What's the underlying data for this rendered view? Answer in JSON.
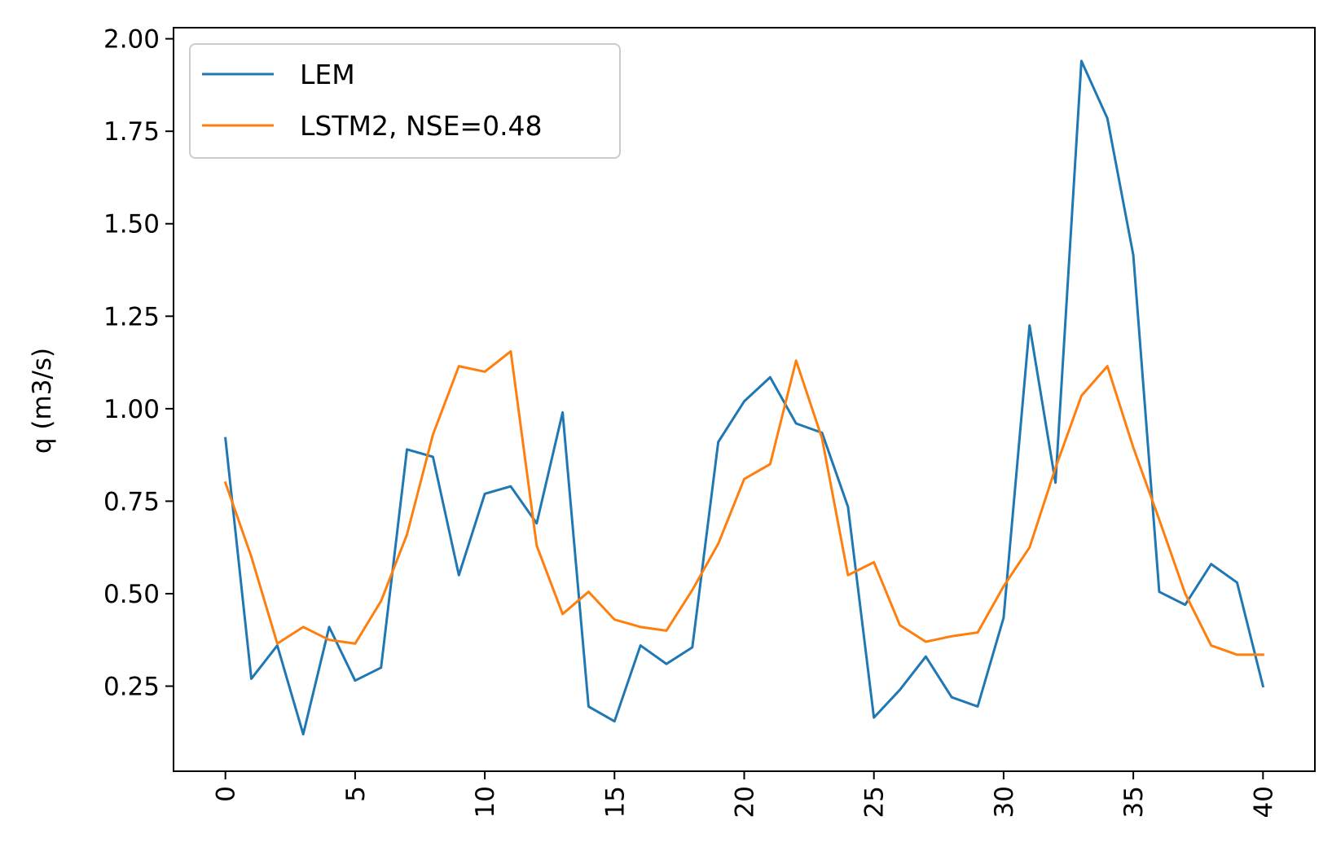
{
  "chart_data": {
    "type": "line",
    "title": "",
    "xlabel": "",
    "ylabel": "q (m3/s)",
    "xlim": [
      -2,
      42
    ],
    "ylim": [
      0.02,
      2.03
    ],
    "xticks": [
      0,
      5,
      10,
      15,
      20,
      25,
      30,
      35,
      40
    ],
    "xtick_labels": [
      "0",
      "5",
      "10",
      "15",
      "20",
      "25",
      "30",
      "35",
      "40"
    ],
    "xtick_rotation": "vertical",
    "yticks": [
      0.25,
      0.5,
      0.75,
      1.0,
      1.25,
      1.5,
      1.75,
      2.0
    ],
    "ytick_labels": [
      "0.25",
      "0.50",
      "0.75",
      "1.00",
      "1.25",
      "1.50",
      "1.75",
      "2.00"
    ],
    "grid": false,
    "legend_position": "top-left",
    "x": [
      0,
      1,
      2,
      3,
      4,
      5,
      6,
      7,
      8,
      9,
      10,
      11,
      12,
      13,
      14,
      15,
      16,
      17,
      18,
      19,
      20,
      21,
      22,
      23,
      24,
      25,
      26,
      27,
      28,
      29,
      30,
      31,
      32,
      33,
      34,
      35,
      36,
      37,
      38,
      39,
      40
    ],
    "series": [
      {
        "name": "LEM",
        "color": "#1f77b4",
        "values": [
          0.92,
          0.27,
          0.36,
          0.12,
          0.41,
          0.265,
          0.3,
          0.89,
          0.87,
          0.55,
          0.77,
          0.79,
          0.69,
          0.99,
          0.195,
          0.155,
          0.36,
          0.31,
          0.355,
          0.91,
          1.02,
          1.085,
          0.96,
          0.935,
          0.735,
          0.165,
          0.24,
          0.33,
          0.22,
          0.195,
          0.435,
          1.225,
          0.8,
          1.94,
          1.785,
          1.415,
          0.505,
          0.47,
          0.58,
          0.53,
          0.25
        ]
      },
      {
        "name": "LSTM2, NSE=0.48",
        "color": "#ff7f0e",
        "values": [
          0.8,
          0.6,
          0.365,
          0.41,
          0.375,
          0.365,
          0.48,
          0.66,
          0.93,
          1.115,
          1.1,
          1.155,
          0.63,
          0.445,
          0.505,
          0.43,
          0.41,
          0.4,
          0.51,
          0.635,
          0.81,
          0.85,
          1.13,
          0.92,
          0.55,
          0.585,
          0.415,
          0.37,
          0.385,
          0.395,
          0.52,
          0.625,
          0.84,
          1.035,
          1.115,
          0.895,
          0.7,
          0.5,
          0.36,
          0.335,
          0.335
        ]
      }
    ]
  }
}
